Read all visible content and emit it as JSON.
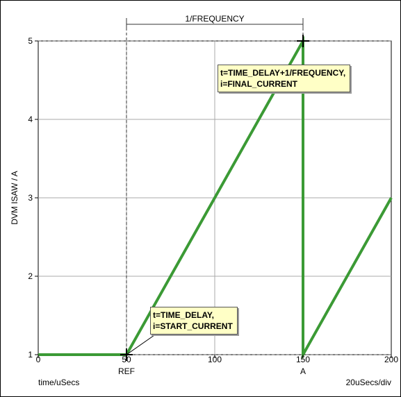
{
  "chart_data": {
    "type": "line",
    "ylabel": "DVM ISAW / A",
    "xlabel": "time/uSecs",
    "x_scale_label": "20uSecs/div",
    "xlim": [
      0,
      200
    ],
    "ylim": [
      1,
      5
    ],
    "x_ticks": [
      0,
      50,
      100,
      150,
      200
    ],
    "y_ticks": [
      1,
      2,
      3,
      4,
      5
    ],
    "grid": true,
    "series": [
      {
        "color": "#3b9a35",
        "points": [
          {
            "x": 0,
            "y": 1
          },
          {
            "x": 50,
            "y": 1
          },
          {
            "x": 150,
            "y": 5
          },
          {
            "x": 150,
            "y": 1
          },
          {
            "x": 200,
            "y": 3
          }
        ]
      }
    ],
    "markers": [
      {
        "label": "REF",
        "x": 50
      },
      {
        "label": "A",
        "x": 150
      }
    ],
    "period_label": "1/FREQUENCY",
    "annotations": [
      {
        "lines": [
          "t=TIME_DELAY+1/FREQUENCY,",
          "i=FINAL_CURRENT"
        ],
        "x": 150,
        "y": 5
      },
      {
        "lines": [
          "t=TIME_DELAY,",
          "i=START_CURRENT"
        ],
        "x": 50,
        "y": 1
      }
    ]
  }
}
